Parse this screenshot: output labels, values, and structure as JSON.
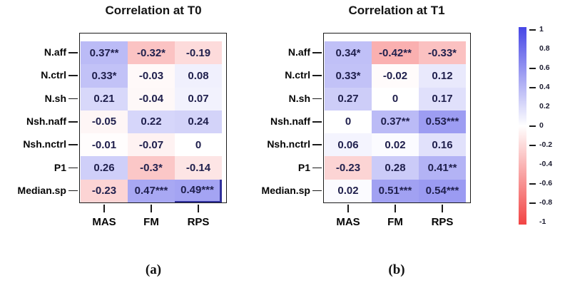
{
  "chart_data": [
    {
      "type": "heatmap",
      "title": "Correlation at T0",
      "panel_label": "(a)",
      "columns": [
        "MAS",
        "FM",
        "RPS"
      ],
      "rows": [
        "N.aff",
        "N.ctrl",
        "N.sh",
        "Nsh.naff",
        "Nsh.nctrl",
        "P1",
        "Median.sp"
      ],
      "cell_labels": [
        [
          "0.37**",
          "-0.32*",
          "-0.19"
        ],
        [
          "0.33*",
          "-0.03",
          "0.08"
        ],
        [
          "0.21",
          "-0.04",
          "0.07"
        ],
        [
          "-0.05",
          "0.22",
          "0.24"
        ],
        [
          "-0.01",
          "-0.07",
          "0"
        ],
        [
          "0.26",
          "-0.3*",
          "-0.14"
        ],
        [
          "-0.23",
          "0.47***",
          "0.49***"
        ]
      ],
      "values": [
        [
          0.37,
          -0.32,
          -0.19
        ],
        [
          0.33,
          -0.03,
          0.08
        ],
        [
          0.21,
          -0.04,
          0.07
        ],
        [
          -0.05,
          0.22,
          0.24
        ],
        [
          -0.01,
          -0.07,
          0
        ],
        [
          0.26,
          -0.3,
          -0.14
        ],
        [
          -0.23,
          0.47,
          0.49
        ]
      ],
      "value_range": [
        -1,
        1
      ],
      "corner_mark": true
    },
    {
      "type": "heatmap",
      "title": "Correlation at T1",
      "panel_label": "(b)",
      "columns": [
        "MAS",
        "FM",
        "RPS"
      ],
      "rows": [
        "N.aff",
        "N.ctrl",
        "N.sh",
        "Nsh.naff",
        "Nsh.nctrl",
        "P1",
        "Median.sp"
      ],
      "cell_labels": [
        [
          "0.34*",
          "-0.42**",
          "-0.33*"
        ],
        [
          "0.33*",
          "-0.02",
          "0.12"
        ],
        [
          "0.27",
          "0",
          "0.17"
        ],
        [
          "0",
          "0.37**",
          "0.53***"
        ],
        [
          "0.06",
          "0.02",
          "0.16"
        ],
        [
          "-0.23",
          "0.28",
          "0.41**"
        ],
        [
          "0.02",
          "0.51***",
          "0.54***"
        ]
      ],
      "values": [
        [
          0.34,
          -0.42,
          -0.33
        ],
        [
          0.33,
          -0.02,
          0.12
        ],
        [
          0.27,
          0,
          0.17
        ],
        [
          0,
          0.37,
          0.53
        ],
        [
          0.06,
          0.02,
          0.16
        ],
        [
          -0.23,
          0.28,
          0.41
        ],
        [
          0.02,
          0.51,
          0.54
        ]
      ],
      "value_range": [
        -1,
        1
      ],
      "corner_mark": false
    }
  ],
  "colorbar": {
    "min": -1,
    "max": 1,
    "labels": [
      "1",
      "0.8",
      "0.6",
      "0.4",
      "0.2",
      "0",
      "-0.2",
      "-0.4",
      "-0.6",
      "-0.8",
      "-1"
    ],
    "tick_shown": [
      true,
      false,
      true,
      true,
      false,
      true,
      true,
      false,
      true,
      true,
      false
    ]
  },
  "colors": {
    "positive_end": "#4646e6",
    "negative_end": "#f24444",
    "neutral": "#ffffff",
    "cell_text": "#20204d",
    "corner_mark": "#30309a"
  }
}
